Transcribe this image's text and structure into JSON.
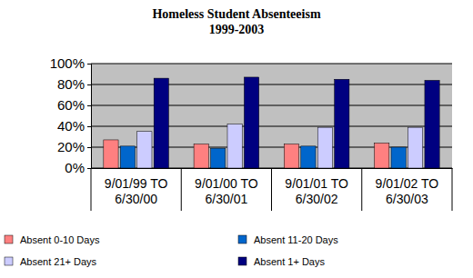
{
  "chart_data": {
    "type": "bar",
    "title": "Homeless Student Absenteeism",
    "subtitle": "1999-2003",
    "categories": [
      "9/01/99 TO 6/30/00",
      "9/01/00 TO 6/30/01",
      "9/01/01 TO 6/30/02",
      "9/01/02 TO 6/30/03"
    ],
    "series": [
      {
        "name": "Absent 0-10 Days",
        "color": "#ff8080",
        "values": [
          27,
          23,
          23,
          24
        ]
      },
      {
        "name": "Absent 11-20 Days",
        "color": "#0066cc",
        "values": [
          21,
          19,
          21,
          20
        ]
      },
      {
        "name": "Absent 21+ Days",
        "color": "#ccccff",
        "values": [
          35,
          42,
          39,
          39
        ]
      },
      {
        "name": "Absent 1+ Days",
        "color": "#000080",
        "values": [
          86,
          87,
          85,
          84
        ]
      }
    ],
    "ylim": [
      0,
      100
    ],
    "yticks": [
      {
        "value": 0,
        "label": "0%"
      },
      {
        "value": 20,
        "label": "20%"
      },
      {
        "value": 40,
        "label": "40%"
      },
      {
        "value": 60,
        "label": "60%"
      },
      {
        "value": 80,
        "label": "80%"
      },
      {
        "value": 100,
        "label": "100%"
      }
    ],
    "grid": true,
    "legend": "bottom"
  }
}
